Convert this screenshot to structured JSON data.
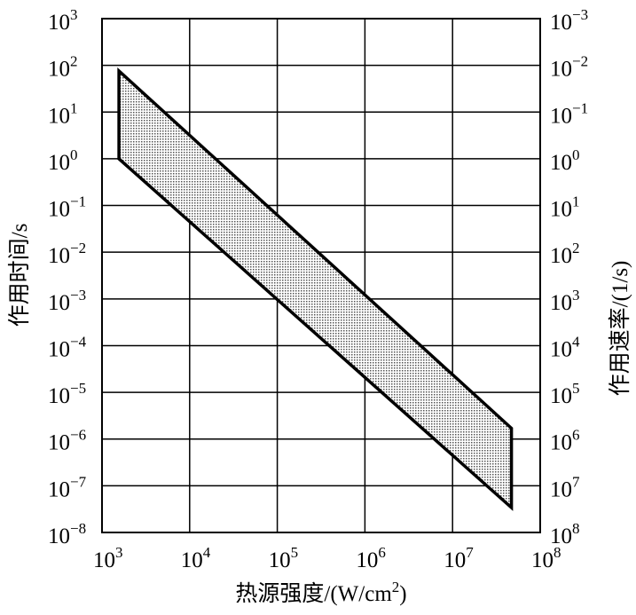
{
  "chart_data": {
    "type": "area",
    "xlabel": "热源强度/(W/cm2)",
    "xlabel_parts": {
      "text": "热源强度/(W/cm",
      "sup": "2",
      "tail": ")"
    },
    "ylabel": "作用时间/s",
    "y2label": "作用速率/(1/s)",
    "x_scale": "log",
    "y_scale": "log",
    "xlim": [
      1000,
      100000000
    ],
    "ylim": [
      1e-08,
      1000
    ],
    "x_ticks": [
      {
        "base": "10",
        "exp": "3"
      },
      {
        "base": "10",
        "exp": "4"
      },
      {
        "base": "10",
        "exp": "5"
      },
      {
        "base": "10",
        "exp": "6"
      },
      {
        "base": "10",
        "exp": "7"
      },
      {
        "base": "10",
        "exp": "8"
      }
    ],
    "y_ticks": [
      {
        "base": "10",
        "exp": "3"
      },
      {
        "base": "10",
        "exp": "2"
      },
      {
        "base": "10",
        "exp": "1"
      },
      {
        "base": "10",
        "exp": "0"
      },
      {
        "base": "10",
        "exp": "−1"
      },
      {
        "base": "10",
        "exp": "−2"
      },
      {
        "base": "10",
        "exp": "−3"
      },
      {
        "base": "10",
        "exp": "−4"
      },
      {
        "base": "10",
        "exp": "−5"
      },
      {
        "base": "10",
        "exp": "−6"
      },
      {
        "base": "10",
        "exp": "−7"
      },
      {
        "base": "10",
        "exp": "−8"
      }
    ],
    "y2_ticks": [
      {
        "base": "10",
        "exp": "−3"
      },
      {
        "base": "10",
        "exp": "−2"
      },
      {
        "base": "10",
        "exp": "−1"
      },
      {
        "base": "10",
        "exp": "0"
      },
      {
        "base": "10",
        "exp": "1"
      },
      {
        "base": "10",
        "exp": "2"
      },
      {
        "base": "10",
        "exp": "3"
      },
      {
        "base": "10",
        "exp": "4"
      },
      {
        "base": "10",
        "exp": "5"
      },
      {
        "base": "10",
        "exp": "6"
      },
      {
        "base": "10",
        "exp": "7"
      },
      {
        "base": "10",
        "exp": "8"
      }
    ],
    "grid": true,
    "band": {
      "fill": "dotted gray",
      "polygon": [
        {
          "x": 1560,
          "y": 76
        },
        {
          "x": 47000000,
          "y": 1.7e-06
        },
        {
          "x": 47000000,
          "y": 3.4e-08
        },
        {
          "x": 1560,
          "y": 1.0
        }
      ]
    }
  }
}
